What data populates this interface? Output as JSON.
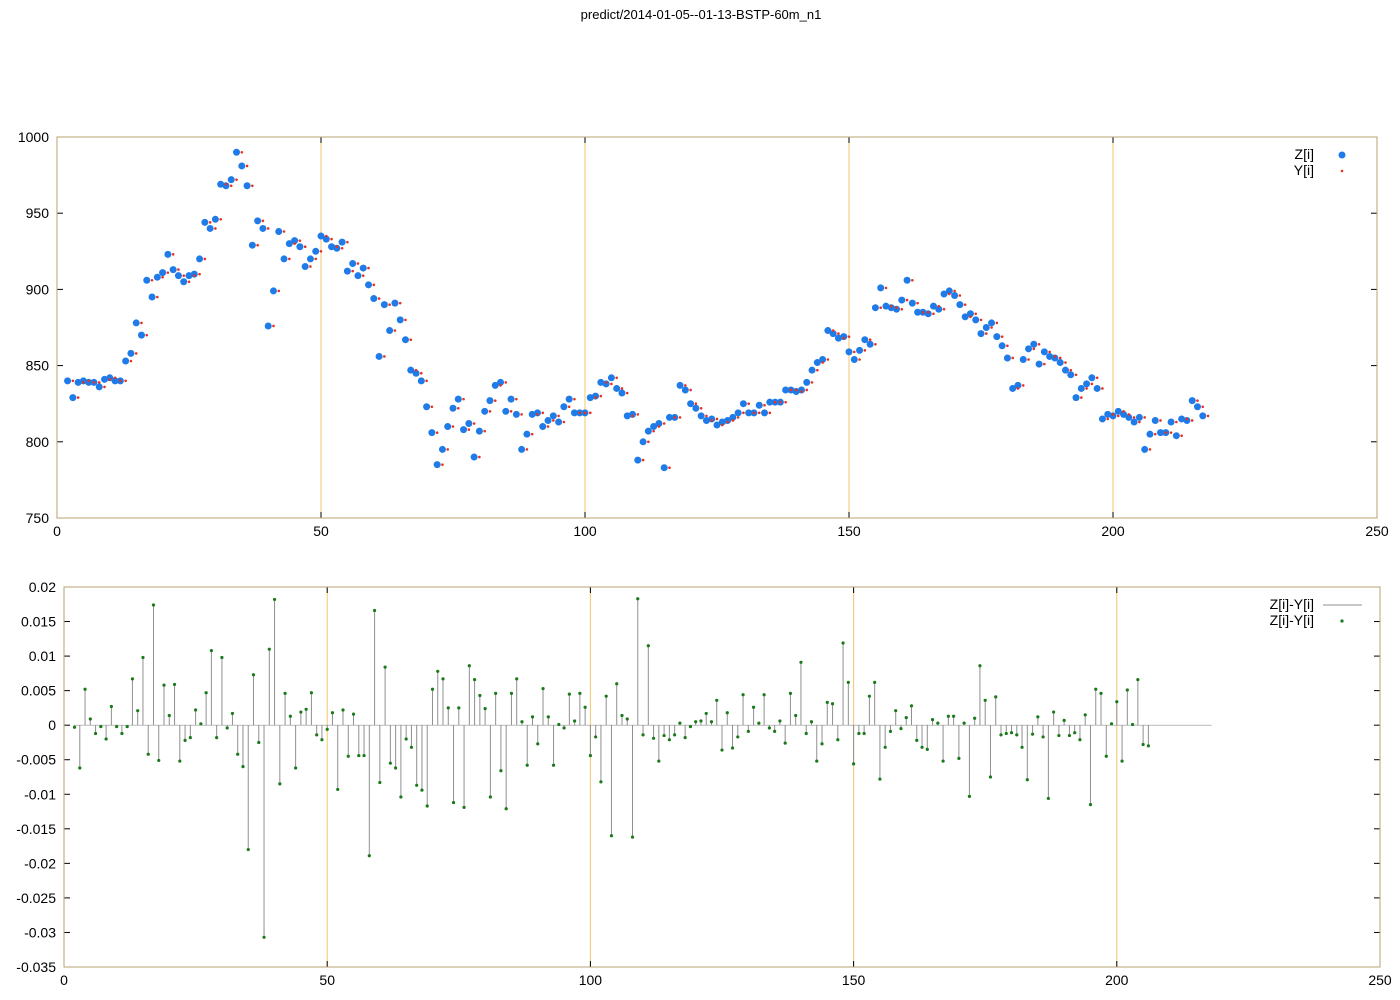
{
  "title": "predict/2014-01-05--01-13-BSTP-60m_n1",
  "colors": {
    "frame": "#b8a070",
    "grid_vertical": "#f4c56b",
    "z_series": "#1f7be8",
    "y_series": "#e8321f",
    "residual_stem": "#909090",
    "residual_point": "#1a7a1a"
  },
  "chart_data": [
    {
      "type": "scatter",
      "title": "predict/2014-01-05--01-13-BSTP-60m_n1",
      "xlim": [
        0,
        250
      ],
      "ylim": [
        750,
        1000
      ],
      "x_ticks": [
        "0",
        "50",
        "100",
        "150",
        "200",
        "250"
      ],
      "y_ticks": [
        "750",
        "800",
        "850",
        "900",
        "950",
        "1000"
      ],
      "grid": "vertical lines at 50, 100, 150, 200",
      "legend": "top-right",
      "series": [
        {
          "name": "Z[i]",
          "marker": "blue filled circle",
          "values": [
            840,
            829,
            839,
            840,
            839,
            839,
            836,
            841,
            842,
            840,
            840,
            853,
            858,
            878,
            870,
            906,
            895,
            908,
            911,
            923,
            913,
            909,
            905,
            909,
            910,
            920,
            944,
            940,
            946,
            969,
            968,
            972,
            990,
            981,
            968,
            929,
            945,
            940,
            876,
            899,
            938,
            920,
            930,
            932,
            928,
            915,
            920,
            925,
            935,
            933,
            928,
            927,
            931,
            912,
            917,
            909,
            914,
            903,
            894,
            856,
            890,
            873,
            891,
            880,
            867,
            847,
            845,
            840,
            823,
            806,
            785,
            795,
            810,
            822,
            828,
            808,
            812,
            790,
            807,
            820,
            827,
            837,
            839,
            820,
            828,
            818,
            795,
            805,
            818,
            819,
            810,
            814,
            817,
            813,
            823,
            828,
            819,
            819,
            819,
            829,
            830,
            839,
            838,
            842,
            835,
            832,
            817,
            818,
            788,
            800,
            807,
            810,
            812,
            783,
            816,
            816,
            837,
            834,
            825,
            822,
            817,
            814,
            815,
            811,
            813,
            814,
            816,
            819,
            825,
            819,
            819,
            824,
            819,
            826,
            826,
            826,
            834,
            834,
            833,
            834,
            839,
            847,
            852,
            854,
            873,
            871,
            868,
            869,
            859,
            854,
            860,
            867,
            864,
            888,
            901,
            889,
            888,
            887,
            893,
            906,
            891,
            885,
            885,
            884,
            889,
            887,
            897,
            899,
            896,
            890,
            882,
            884,
            880,
            871,
            875,
            878,
            869,
            863,
            855,
            835,
            837,
            854,
            861,
            864,
            851,
            859,
            856,
            855,
            852,
            847,
            844,
            829,
            835,
            838,
            842,
            835,
            815,
            818,
            817,
            820,
            818,
            816,
            813,
            816,
            795,
            805,
            814,
            806,
            806,
            813,
            804,
            815,
            814,
            827,
            823,
            817
          ]
        },
        {
          "name": "Y[i]",
          "marker": "small red dot",
          "values": [
            840,
            829,
            839,
            840,
            839,
            839,
            836,
            841,
            842,
            840,
            840,
            853,
            858,
            878,
            870,
            906,
            895,
            908,
            911,
            923,
            913,
            909,
            905,
            909,
            910,
            920,
            944,
            940,
            946,
            969,
            968,
            972,
            990,
            981,
            968,
            929,
            945,
            940,
            876,
            899,
            938,
            920,
            930,
            932,
            928,
            915,
            920,
            925,
            935,
            933,
            928,
            927,
            931,
            912,
            917,
            909,
            914,
            903,
            894,
            856,
            890,
            873,
            891,
            880,
            867,
            847,
            845,
            840,
            823,
            806,
            785,
            795,
            810,
            822,
            828,
            808,
            812,
            790,
            807,
            820,
            827,
            837,
            839,
            820,
            828,
            818,
            795,
            805,
            818,
            819,
            810,
            814,
            817,
            813,
            823,
            828,
            819,
            819,
            819,
            829,
            830,
            839,
            838,
            842,
            835,
            832,
            817,
            818,
            788,
            800,
            807,
            810,
            812,
            783,
            816,
            816,
            837,
            834,
            825,
            822,
            817,
            814,
            815,
            811,
            813,
            814,
            816,
            819,
            825,
            819,
            819,
            824,
            819,
            826,
            826,
            826,
            834,
            834,
            833,
            834,
            839,
            847,
            852,
            854,
            873,
            871,
            868,
            869,
            859,
            854,
            860,
            867,
            864,
            888,
            901,
            889,
            888,
            887,
            893,
            906,
            891,
            885,
            885,
            884,
            889,
            887,
            897,
            899,
            896,
            890,
            882,
            884,
            880,
            871,
            875,
            878,
            869,
            863,
            855,
            835,
            837,
            854,
            861,
            864,
            851,
            859,
            856,
            855,
            852,
            847,
            844,
            829,
            835,
            838,
            842,
            835,
            815,
            818,
            817,
            820,
            818,
            816,
            813,
            816,
            795,
            805,
            814,
            806,
            806,
            813,
            804,
            815,
            814,
            827,
            823,
            817
          ]
        }
      ]
    },
    {
      "type": "scatter",
      "xlim": [
        0,
        250
      ],
      "ylim": [
        -0.035,
        0.02
      ],
      "x_ticks": [
        "0",
        "50",
        "100",
        "150",
        "200",
        "250"
      ],
      "y_ticks": [
        "-0.035",
        "-0.03",
        "-0.025",
        "-0.02",
        "-0.015",
        "-0.01",
        "-0.005",
        "0",
        "0.005",
        "0.01",
        "0.015",
        "0.02"
      ],
      "grid": "vertical lines at 50, 100, 150, 200",
      "legend": "top-right",
      "series": [
        {
          "name": "Z[i]-Y[i]",
          "marker": "gray impulse line"
        },
        {
          "name": "Z[i]-Y[i]",
          "marker": "green dot",
          "values": [
            -0.0003,
            -0.0062,
            0.0052,
            0.0009,
            -0.0012,
            -0.0002,
            -0.002,
            0.0027,
            -0.0002,
            -0.0012,
            -0.0002,
            0.0067,
            0.0021,
            0.0098,
            -0.0042,
            0.0174,
            -0.0051,
            0.0058,
            0.0014,
            0.0059,
            -0.0052,
            -0.0022,
            -0.0018,
            0.0022,
            0.0002,
            0.0047,
            0.0108,
            -0.0018,
            0.0098,
            -0.0004,
            0.0017,
            -0.0042,
            -0.006,
            -0.018,
            0.0073,
            -0.0025,
            -0.0307,
            0.011,
            0.0182,
            -0.0085,
            0.0046,
            0.0013,
            -0.0062,
            0.0019,
            0.0023,
            0.0047,
            -0.0014,
            -0.0021,
            -0.0006,
            0.0018,
            -0.0093,
            0.0022,
            -0.0045,
            0.0016,
            -0.0044,
            -0.0044,
            -0.0189,
            0.0166,
            -0.0083,
            0.0084,
            -0.0055,
            -0.0062,
            -0.0104,
            -0.002,
            -0.0032,
            -0.0087,
            -0.0094,
            -0.0117,
            0.0052,
            0.0078,
            0.0067,
            0.0025,
            -0.0112,
            0.0025,
            -0.0119,
            0.0086,
            0.0066,
            0.0043,
            0.0024,
            -0.0104,
            0.0046,
            -0.0066,
            -0.0121,
            0.0046,
            0.0067,
            0.0005,
            -0.0058,
            0.0012,
            -0.0027,
            0.0053,
            0.0012,
            -0.0058,
            0.0001,
            -0.0004,
            0.0045,
            0.0006,
            0.0046,
            0.0026,
            -0.0044,
            -0.0017,
            -0.0082,
            0.0042,
            -0.016,
            0.006,
            0.0014,
            0.0009,
            -0.0162,
            0.0183,
            -0.0014,
            0.0115,
            -0.0019,
            -0.0052,
            -0.0015,
            -0.0021,
            -0.0014,
            0.0003,
            -0.0018,
            -0.0002,
            0.0005,
            0.0006,
            0.0017,
            0.0005,
            0.0036,
            -0.0036,
            0.0018,
            -0.0033,
            -0.0017,
            0.0044,
            -0.0009,
            0.0026,
            0.0003,
            0.0044,
            -0.0004,
            -0.0009,
            0.0006,
            -0.0026,
            0.0046,
            0.0014,
            0.0091,
            -0.0012,
            0.0005,
            -0.0052,
            -0.0027,
            0.0033,
            0.0031,
            -0.0021,
            0.0119,
            0.0062,
            -0.0056,
            -0.0012,
            -0.0012,
            0.0042,
            0.0062,
            -0.0078,
            -0.0032,
            -0.0009,
            0.0021,
            -0.0005,
            0.0011,
            0.0028,
            -0.0022,
            -0.0032,
            -0.0035,
            0.0008,
            0.0003,
            -0.0052,
            0.0013,
            0.0013,
            -0.0048,
            0.0003,
            -0.0103,
            0.001,
            0.0086,
            0.0036,
            -0.0075,
            0.0041,
            -0.0014,
            -0.0012,
            -0.0011,
            -0.0014,
            -0.0032,
            -0.0079,
            -0.0013,
            0.0012,
            -0.0017,
            -0.0106,
            0.0019,
            -0.0015,
            0.0007,
            -0.0015,
            -0.0011,
            -0.0021,
            0.0015,
            -0.0115,
            0.0052,
            0.0046,
            -0.0045,
            0.0002,
            0.0034,
            -0.0052,
            0.0051,
            0.0001,
            0.0066,
            -0.0028,
            -0.003
          ]
        }
      ]
    }
  ]
}
